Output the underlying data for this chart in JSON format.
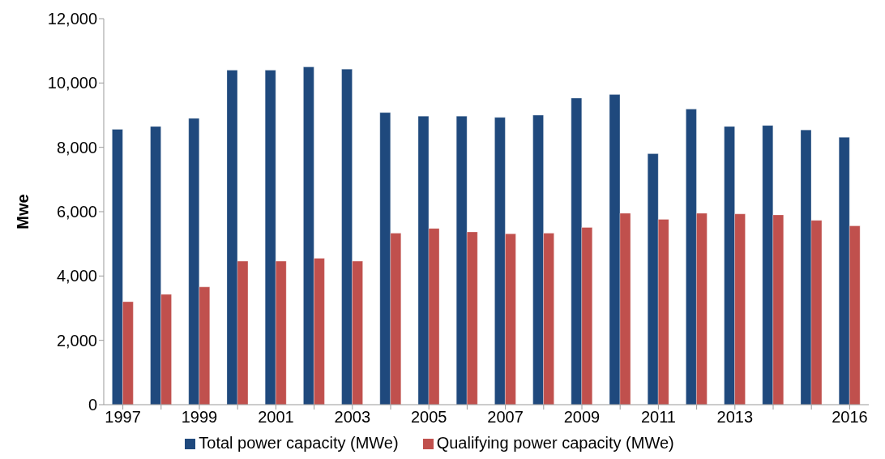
{
  "chart_data": {
    "type": "bar",
    "ylabel": "Mwe",
    "categories": [
      "1997",
      null,
      "1999",
      null,
      "2001",
      null,
      "2003",
      null,
      "2005",
      null,
      "2007",
      null,
      "2009",
      null,
      "2011",
      null,
      "2013",
      null,
      null,
      "2016"
    ],
    "series": [
      {
        "name": "Total power capacity (MWe)",
        "color": "#1f497d",
        "values": [
          8560,
          8650,
          8900,
          10400,
          10400,
          10500,
          10430,
          9080,
          8970,
          8970,
          8930,
          9000,
          9530,
          9640,
          7800,
          9190,
          8650,
          8680,
          8540,
          8310
        ]
      },
      {
        "name": "Qualifying power capacity (MWe)",
        "color": "#c0504d",
        "values": [
          3200,
          3430,
          3660,
          4460,
          4460,
          4550,
          4460,
          5330,
          5480,
          5370,
          5310,
          5330,
          5510,
          5950,
          5760,
          5950,
          5930,
          5900,
          5730,
          5560
        ]
      }
    ],
    "ylim": [
      0,
      12000
    ],
    "yticks": [
      0,
      {
        "value": 2000,
        "label": "2,000"
      },
      {
        "value": 4000,
        "label": "4,000"
      },
      {
        "value": 6000,
        "label": "6,000"
      },
      {
        "value": 8000,
        "label": "8,000"
      },
      {
        "value": 10000,
        "label": "10,000"
      },
      {
        "value": 12000,
        "label": "12,000"
      }
    ],
    "grid": false,
    "legend": "bottom"
  }
}
